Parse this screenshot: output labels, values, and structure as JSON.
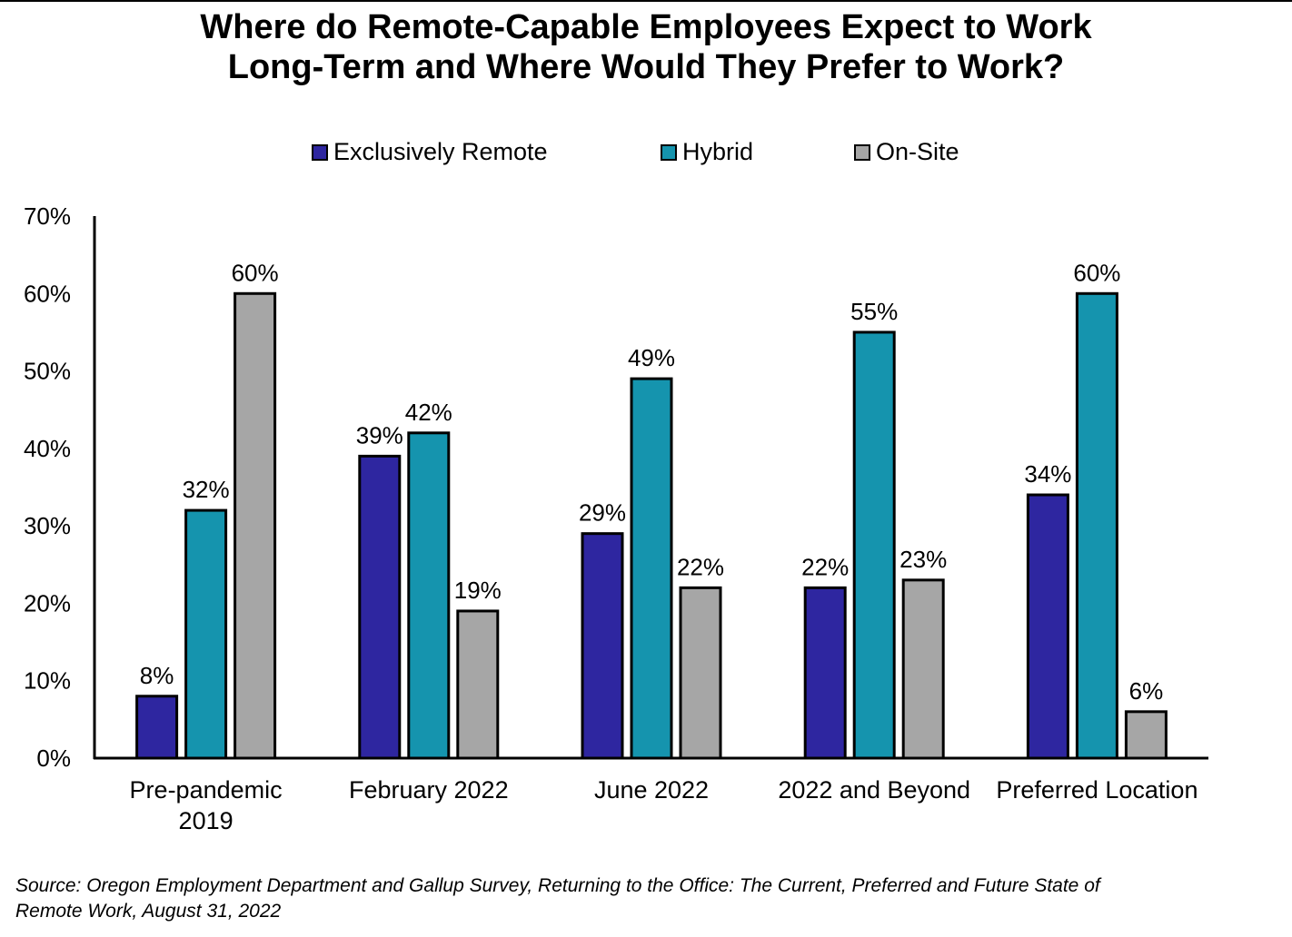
{
  "chart_data": {
    "type": "bar",
    "title": "Where do Remote-Capable Employees Expect to Work Long-Term and Where Would They Prefer to Work?",
    "title_lines": [
      "Where do Remote-Capable Employees Expect to Work",
      "Long-Term and Where Would They Prefer to Work?"
    ],
    "xlabel": "",
    "ylabel": "",
    "ylim": [
      0,
      70
    ],
    "yticks": [
      0,
      10,
      20,
      30,
      40,
      50,
      60,
      70
    ],
    "ytick_labels": [
      "0%",
      "10%",
      "20%",
      "30%",
      "40%",
      "50%",
      "60%",
      "70%"
    ],
    "grid": false,
    "legend_position": "top-center",
    "categories": [
      "Pre-pandemic 2019",
      "February 2022",
      "June 2022",
      "2022 and Beyond",
      "Preferred Location"
    ],
    "category_lines": [
      [
        "Pre-pandemic",
        "2019"
      ],
      [
        "February 2022"
      ],
      [
        "June 2022"
      ],
      [
        "2022 and Beyond"
      ],
      [
        "Preferred Location"
      ]
    ],
    "series": [
      {
        "name": "Exclusively Remote",
        "color": "#2e26a0",
        "values": [
          8,
          39,
          29,
          22,
          34
        ],
        "labels": [
          "8%",
          "39%",
          "29%",
          "22%",
          "34%"
        ]
      },
      {
        "name": "Hybrid",
        "color": "#1594ae",
        "values": [
          32,
          42,
          49,
          55,
          60
        ],
        "labels": [
          "32%",
          "42%",
          "49%",
          "55%",
          "60%"
        ]
      },
      {
        "name": "On-Site",
        "color": "#a6a6a6",
        "values": [
          60,
          19,
          22,
          23,
          6
        ],
        "labels": [
          "60%",
          "19%",
          "22%",
          "23%",
          "6%"
        ]
      }
    ],
    "source": "Source: Oregon Employment Department and Gallup Survey, Returning to the Office: The Current, Preferred and Future State of Remote Work, August 31, 2022",
    "source_lines": [
      "Source: Oregon Employment Department and Gallup Survey, Returning to the Office: The Current, Preferred and Future State of",
      "Remote Work, August 31, 2022"
    ]
  }
}
